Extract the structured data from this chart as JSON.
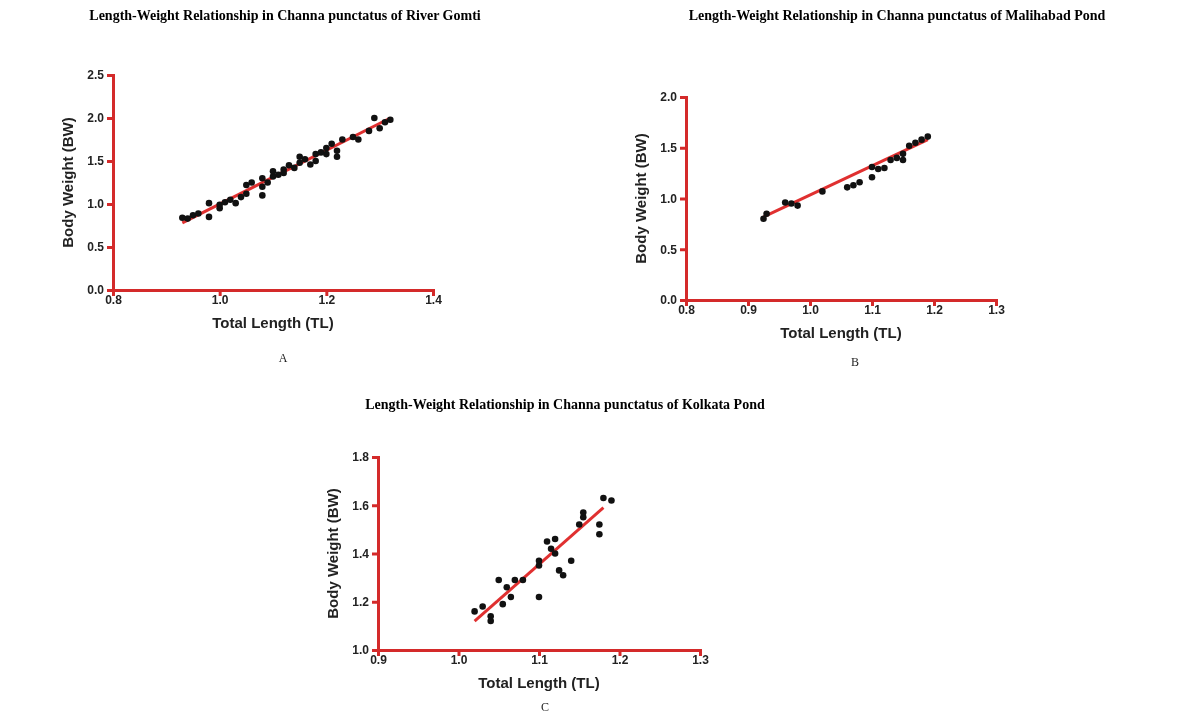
{
  "chart_data": [
    {
      "type": "scatter",
      "title": "Length-Weight Relationship in Channa punctatus of River Gomti",
      "xlabel": "Total Length (TL)",
      "ylabel": "Body Weight (BW)",
      "annotations": [
        "A"
      ],
      "grid": false,
      "xlim": [
        0.8,
        1.4
      ],
      "xticks": [
        {
          "value": 0.8,
          "label": "0.8"
        },
        {
          "value": 1.0,
          "label": "1.0"
        },
        {
          "value": 1.2,
          "label": "1.2"
        },
        {
          "value": 1.4,
          "label": "1.4"
        }
      ],
      "ylim": [
        0,
        2.5
      ],
      "yticks": [
        {
          "value": 0,
          "label": "0.0"
        },
        {
          "value": 0.5,
          "label": "0.5"
        },
        {
          "value": 1,
          "label": "1.0"
        },
        {
          "value": 1.5,
          "label": "1.5"
        },
        {
          "value": 2,
          "label": "2.0"
        },
        {
          "value": 2.5,
          "label": "2.5"
        }
      ],
      "series": [
        {
          "marker": "circle",
          "color": "#111111",
          "x": [
            0.93,
            0.94,
            0.95,
            0.96,
            0.98,
            0.98,
            1.0,
            1.0,
            1.01,
            1.02,
            1.03,
            1.04,
            1.05,
            1.05,
            1.06,
            1.08,
            1.08,
            1.08,
            1.09,
            1.1,
            1.1,
            1.11,
            1.12,
            1.12,
            1.13,
            1.14,
            1.15,
            1.15,
            1.16,
            1.17,
            1.18,
            1.18,
            1.19,
            1.2,
            1.2,
            1.21,
            1.22,
            1.22,
            1.23,
            1.25,
            1.26,
            1.28,
            1.29,
            1.3,
            1.31,
            1.32
          ],
          "values": [
            0.84,
            0.83,
            0.87,
            0.89,
            0.85,
            1.01,
            0.95,
            0.99,
            1.02,
            1.05,
            1.01,
            1.08,
            1.12,
            1.22,
            1.25,
            1.1,
            1.2,
            1.3,
            1.25,
            1.32,
            1.38,
            1.34,
            1.4,
            1.36,
            1.45,
            1.42,
            1.48,
            1.55,
            1.52,
            1.46,
            1.58,
            1.5,
            1.6,
            1.65,
            1.58,
            1.7,
            1.62,
            1.55,
            1.75,
            1.78,
            1.75,
            1.85,
            2.0,
            1.88,
            1.95,
            1.98
          ]
        },
        {
          "type": "line",
          "color": "#e03030",
          "x": [
            0.93,
            1.32
          ],
          "values": [
            0.78,
            2.0
          ]
        }
      ]
    },
    {
      "type": "scatter",
      "title": "Length-Weight Relationship in Channa punctatus of Malihabad Pond",
      "xlabel": "Total Length (TL)",
      "ylabel": "Body Weight (BW)",
      "annotations": [
        "B"
      ],
      "grid": false,
      "xlim": [
        0.8,
        1.3
      ],
      "xticks": [
        {
          "value": 0.8,
          "label": "0.8"
        },
        {
          "value": 0.9,
          "label": "0.9"
        },
        {
          "value": 1.0,
          "label": "1.0"
        },
        {
          "value": 1.1,
          "label": "1.1"
        },
        {
          "value": 1.2,
          "label": "1.2"
        },
        {
          "value": 1.3,
          "label": "1.3"
        }
      ],
      "ylim": [
        0,
        2
      ],
      "yticks": [
        {
          "value": 0,
          "label": "0.0"
        },
        {
          "value": 0.5,
          "label": "0.5"
        },
        {
          "value": 1,
          "label": "1.0"
        },
        {
          "value": 1.5,
          "label": "1.5"
        },
        {
          "value": 2,
          "label": "2.0"
        }
      ],
      "series": [
        {
          "marker": "circle",
          "color": "#111111",
          "x": [
            0.925,
            0.93,
            0.96,
            0.97,
            0.98,
            1.02,
            1.06,
            1.07,
            1.08,
            1.1,
            1.1,
            1.11,
            1.12,
            1.13,
            1.14,
            1.15,
            1.15,
            1.16,
            1.17,
            1.18,
            1.19
          ],
          "values": [
            0.8,
            0.85,
            0.96,
            0.95,
            0.93,
            1.07,
            1.11,
            1.13,
            1.16,
            1.21,
            1.31,
            1.29,
            1.3,
            1.38,
            1.4,
            1.44,
            1.38,
            1.52,
            1.55,
            1.58,
            1.61
          ]
        },
        {
          "type": "line",
          "color": "#e03030",
          "x": [
            0.925,
            1.19
          ],
          "values": [
            0.82,
            1.58
          ]
        }
      ]
    },
    {
      "type": "scatter",
      "title": "Length-Weight Relationship in Channa punctatus of Kolkata Pond",
      "xlabel": "Total Length (TL)",
      "ylabel": "Body Weight (BW)",
      "annotations": [
        "C"
      ],
      "grid": false,
      "xlim": [
        0.9,
        1.3
      ],
      "xticks": [
        {
          "value": 0.9,
          "label": "0.9"
        },
        {
          "value": 1.0,
          "label": "1.0"
        },
        {
          "value": 1.1,
          "label": "1.1"
        },
        {
          "value": 1.2,
          "label": "1.2"
        },
        {
          "value": 1.3,
          "label": "1.3"
        }
      ],
      "ylim": [
        1,
        1.8
      ],
      "yticks": [
        {
          "value": 1,
          "label": "1.0"
        },
        {
          "value": 1.2,
          "label": "1.2"
        },
        {
          "value": 1.4,
          "label": "1.4"
        },
        {
          "value": 1.6,
          "label": "1.6"
        },
        {
          "value": 1.8,
          "label": "1.8"
        }
      ],
      "series": [
        {
          "marker": "circle",
          "color": "#111111",
          "x": [
            1.02,
            1.03,
            1.04,
            1.04,
            1.05,
            1.055,
            1.06,
            1.065,
            1.07,
            1.08,
            1.1,
            1.1,
            1.1,
            1.11,
            1.115,
            1.12,
            1.12,
            1.125,
            1.13,
            1.14,
            1.15,
            1.155,
            1.155,
            1.175,
            1.175,
            1.18,
            1.19
          ],
          "values": [
            1.16,
            1.18,
            1.14,
            1.12,
            1.29,
            1.19,
            1.26,
            1.22,
            1.29,
            1.29,
            1.22,
            1.35,
            1.37,
            1.45,
            1.42,
            1.4,
            1.46,
            1.33,
            1.31,
            1.37,
            1.52,
            1.55,
            1.57,
            1.52,
            1.48,
            1.63,
            1.62
          ]
        },
        {
          "type": "line",
          "color": "#e03030",
          "x": [
            1.02,
            1.18
          ],
          "values": [
            1.12,
            1.59
          ]
        }
      ]
    }
  ]
}
